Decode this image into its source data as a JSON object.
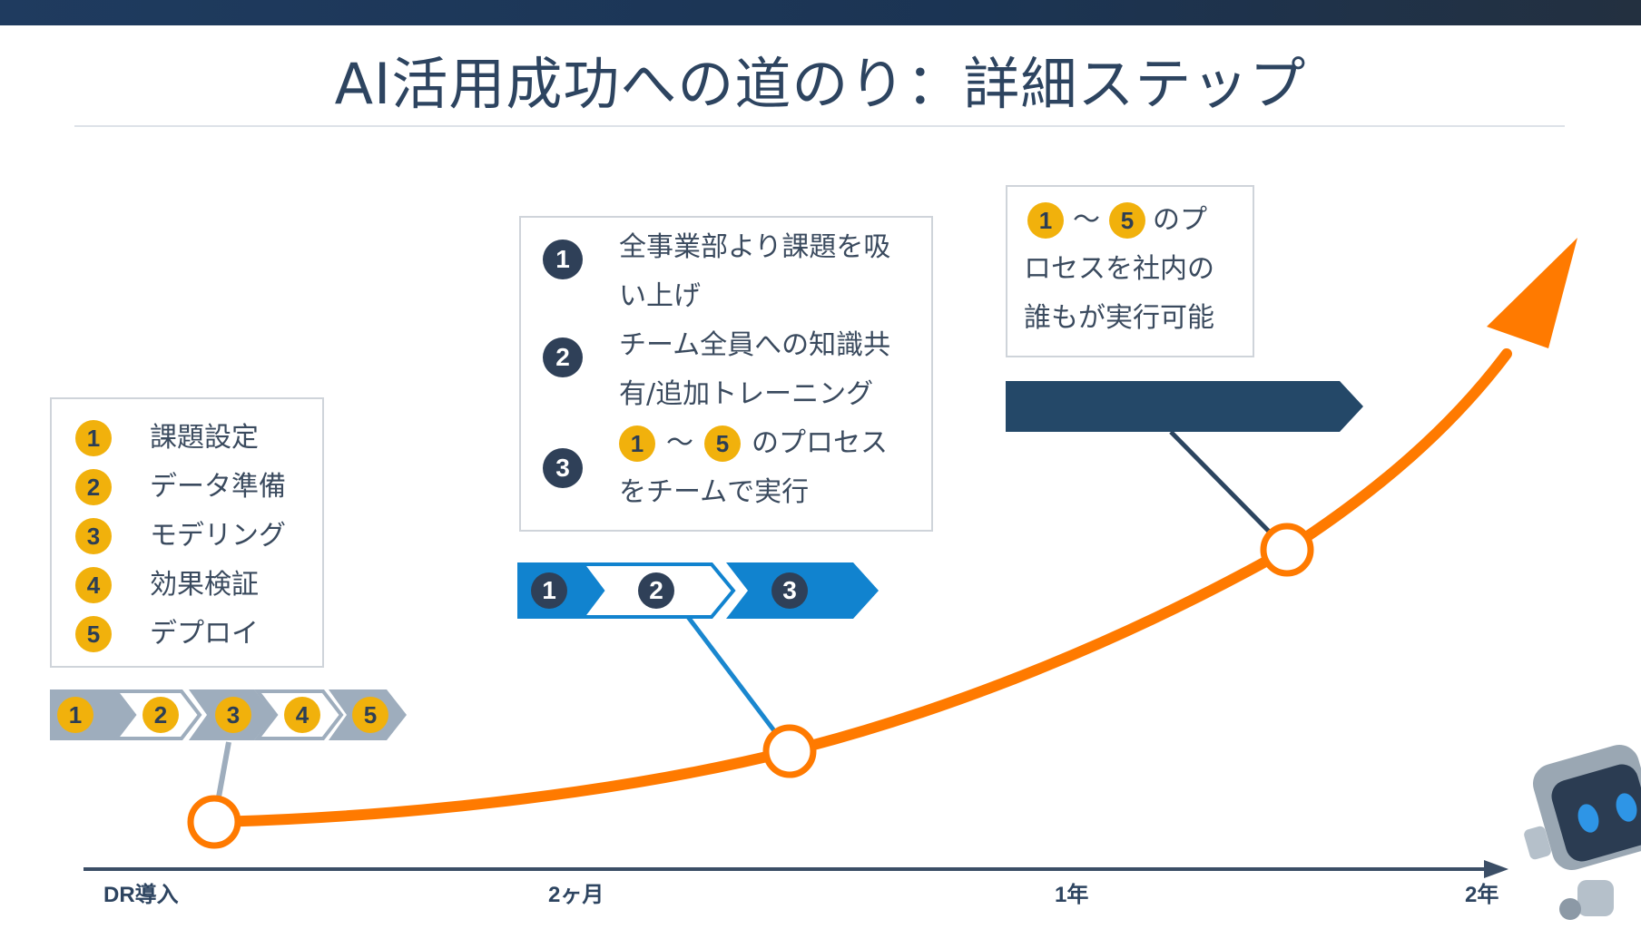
{
  "title": "AI活用成功への道のり：詳細ステップ",
  "colors": {
    "orange": "#ff7a00",
    "navy": "#2f4058",
    "blue": "#1183cf",
    "gray": "#9eadbd",
    "yellow": "#f1b10c"
  },
  "stage1": {
    "items": [
      {
        "num": "1",
        "label": "課題設定"
      },
      {
        "num": "2",
        "label": "データ準備"
      },
      {
        "num": "3",
        "label": "モデリング"
      },
      {
        "num": "4",
        "label": "効果検証"
      },
      {
        "num": "5",
        "label": "デプロイ"
      }
    ],
    "chevrons": [
      "1",
      "2",
      "3",
      "4",
      "5"
    ]
  },
  "stage2": {
    "items": [
      {
        "num": "1",
        "line1": "全事業部より課題を吸",
        "line2": "い上げ"
      },
      {
        "num": "2",
        "line1": "チーム全員への知識共",
        "line2": "有/追加トレーニング"
      },
      {
        "num": "3",
        "badge_a": "1",
        "tilde": "〜",
        "badge_b": "5",
        "line1_rest": "のプロセス",
        "line2": "をチームで実行"
      }
    ],
    "chevrons": [
      "1",
      "2",
      "3"
    ]
  },
  "stage3": {
    "badge_a": "1",
    "tilde": "〜",
    "badge_b": "5",
    "line1_rest": "のプ",
    "line2": "ロセスを社内の",
    "line3": "誰もが実行可能"
  },
  "axis": {
    "labels": [
      "DR導入",
      "2ヶ月",
      "1年",
      "2年"
    ]
  },
  "icons": [
    "robot-icon",
    "arrow-icon"
  ]
}
